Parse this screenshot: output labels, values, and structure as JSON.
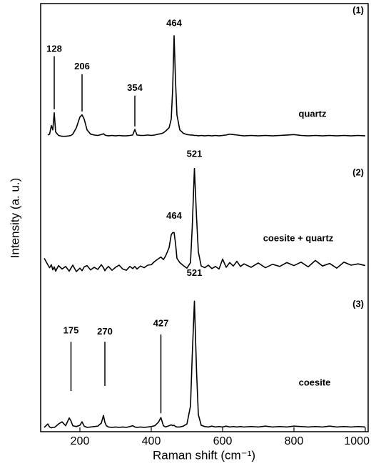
{
  "chart_data": {
    "type": "line",
    "xlabel": "Raman shift (cm⁻¹)",
    "ylabel": "Intensity (a. u.)",
    "xlim": [
      90,
      1008
    ],
    "xticks": [
      200,
      400,
      600,
      800,
      1000
    ],
    "ylim": [
      0,
      100
    ],
    "x": [
      100,
      110,
      115,
      120,
      124,
      128,
      132,
      140,
      150,
      160,
      170,
      175,
      180,
      190,
      200,
      206,
      212,
      220,
      230,
      240,
      250,
      260,
      266,
      270,
      274,
      280,
      290,
      300,
      310,
      320,
      330,
      340,
      348,
      354,
      360,
      370,
      380,
      390,
      400,
      410,
      420,
      427,
      434,
      440,
      450,
      456,
      460,
      464,
      468,
      472,
      480,
      490,
      500,
      510,
      515,
      521,
      527,
      532,
      540,
      550,
      560,
      570,
      580,
      590,
      600,
      610,
      620,
      630,
      640,
      650,
      660,
      680,
      700,
      720,
      740,
      760,
      780,
      800,
      820,
      840,
      860,
      880,
      900,
      920,
      940,
      960,
      980,
      1000
    ],
    "series": [
      {
        "name": "quartz",
        "label": "(1)",
        "color": "#000000",
        "values": [
          null,
          69.3,
          69.5,
          71.5,
          70.5,
          74.5,
          70,
          69.2,
          69,
          69,
          69.1,
          69.2,
          69.5,
          71,
          73.5,
          74,
          73,
          70.5,
          69.5,
          69.3,
          69.2,
          69.4,
          69.6,
          69.3,
          69.2,
          69.1,
          69.2,
          69.1,
          69.2,
          69.1,
          69.1,
          69.2,
          69.3,
          70.6,
          69.3,
          69.2,
          69.2,
          69.3,
          69.2,
          69.3,
          69.5,
          69.6,
          69.8,
          70.2,
          71,
          73,
          80,
          92.5,
          82,
          74,
          70.5,
          69.7,
          69.4,
          69.3,
          69.3,
          69.2,
          69.2,
          69.1,
          69.2,
          69.1,
          69.2,
          69.1,
          69.2,
          69.1,
          69.2,
          69.3,
          69.5,
          69.4,
          69.3,
          69.2,
          69.1,
          69.2,
          69.1,
          69.2,
          69.1,
          69.2,
          69.3,
          69.4,
          69.2,
          69.1,
          69.2,
          69.1,
          69.2,
          69.1,
          69.2,
          69.1,
          69.2,
          69.1
        ]
      },
      {
        "name": "coesite + quartz",
        "label": "(2)",
        "color": "#000000",
        "values": [
          40.5,
          39,
          38.3,
          39,
          37.8,
          38.5,
          37.5,
          38.8,
          38,
          38.6,
          37.5,
          38.2,
          38.9,
          37.4,
          38.2,
          37.6,
          38.5,
          38.8,
          37.8,
          38.4,
          37.9,
          39,
          38.3,
          37.6,
          38.1,
          38.6,
          37.7,
          38.4,
          38.9,
          38,
          37.7,
          38.6,
          38.1,
          38.6,
          38,
          38.7,
          38.3,
          38.9,
          39,
          39.8,
          40.4,
          40.8,
          40.2,
          41,
          43,
          46,
          46.5,
          46.5,
          44,
          40.5,
          39.5,
          38.8,
          38.2,
          39.5,
          48,
          61.5,
          50,
          42,
          38.7,
          38.3,
          38.9,
          38.1,
          38.6,
          38,
          40.3,
          38.4,
          39.5,
          38.7,
          39.8,
          38.6,
          39.2,
          38.4,
          39.4,
          38.3,
          39.1,
          38.6,
          39.5,
          38.8,
          39.6,
          38.5,
          40,
          38.7,
          39.3,
          38.2,
          39.6,
          38.9,
          39.2,
          38.8
        ]
      },
      {
        "name": "coesite",
        "label": "(3)",
        "color": "#000000",
        "values": [
          1,
          1.8,
          1.1,
          0.9,
          1,
          1,
          1.2,
          1.8,
          2.3,
          1.4,
          3.2,
          2.5,
          1.4,
          1.2,
          1.5,
          2.3,
          1.3,
          1,
          1.1,
          1.2,
          1.3,
          2,
          3.8,
          2.2,
          1.4,
          1.1,
          1,
          1.1,
          1,
          1.1,
          1,
          1.2,
          1.4,
          1.1,
          1,
          1.1,
          1,
          1.1,
          1.2,
          1.4,
          2.2,
          3.3,
          1.4,
          1.1,
          1.4,
          1.6,
          1.4,
          1.5,
          1.2,
          1.1,
          1.1,
          1.3,
          1.8,
          6,
          18,
          30.5,
          14,
          4,
          1.5,
          1.2,
          1.1,
          1.3,
          1.1,
          1.2,
          1.1,
          1.3,
          1.1,
          1.2,
          1.1,
          1.2,
          1.1,
          1.2,
          1.1,
          1.3,
          1.1,
          1.2,
          1.1,
          1.3,
          1.2,
          1.1,
          1.2,
          1.1,
          1.3,
          1.1,
          1.2,
          1.1,
          1.2,
          1.1
        ]
      }
    ],
    "annotations": [
      {
        "x": 128,
        "y": 89.3,
        "line": [
          75.3,
          87.7
        ]
      },
      {
        "x": 206,
        "y": 85.2,
        "line": [
          74.8,
          83.5
        ]
      },
      {
        "x": 354,
        "y": 80.2,
        "line": [
          71.3,
          78.5
        ]
      },
      {
        "x": 464,
        "y": 95.3
      },
      {
        "x": 464,
        "y": 50.3
      },
      {
        "x": 521,
        "y": 64.8
      },
      {
        "x": 175,
        "y": 23.5,
        "line": [
          9.5,
          21
        ]
      },
      {
        "x": 270,
        "y": 23.3,
        "line": [
          10.7,
          21
        ]
      },
      {
        "x": 427,
        "y": 25.2,
        "line": [
          4.3,
          22.7
        ]
      },
      {
        "x": 521,
        "y": 37
      }
    ]
  }
}
